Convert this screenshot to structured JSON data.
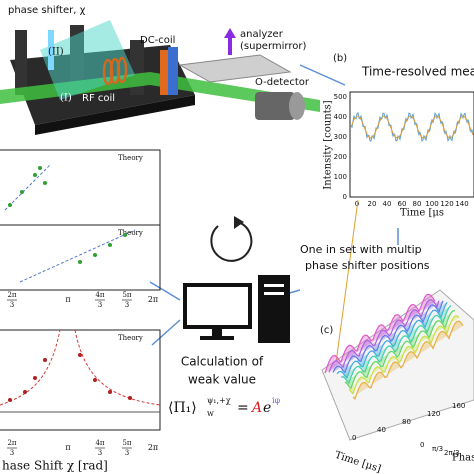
{
  "apparatus": {
    "phase_shifter": "phase shifter, χ",
    "path_2": "(II)",
    "path_1": "(I)",
    "rf_coil": "RF coil",
    "dc_coil": "DC-coil",
    "analyzer": "analyzer",
    "supermirror": "(supermirror)",
    "detector": "O-detector"
  },
  "panel_b": {
    "label": "(b)",
    "title": "Time-resolved measu",
    "y_label": "Intensity [counts]",
    "y_ticks": [
      "0",
      "100",
      "200",
      "300",
      "400",
      "500"
    ],
    "x_ticks": [
      "0",
      "20",
      "40",
      "60",
      "80",
      "100",
      "120",
      "140"
    ],
    "x_label": "Time [μs"
  },
  "note": {
    "line1": "One in set with multip",
    "line2": "phase shifter positions"
  },
  "panel_c": {
    "label": "(c)",
    "time_label": "Time [μs]",
    "time_ticks": [
      "0",
      "40",
      "80",
      "120",
      "160"
    ],
    "phase_label": "Phas",
    "phase_ticks": [
      "0",
      "π/3",
      "2π/3"
    ]
  },
  "left": {
    "legend_1": "Theory",
    "legend_2": "Theory",
    "legend_3": "Theory",
    "x_ticks": [
      {
        "num": "2π",
        "den": "3"
      },
      {
        "num": "π",
        "den": ""
      },
      {
        "num": "4π",
        "den": "3"
      },
      {
        "num": "5π",
        "den": "3"
      },
      {
        "num": "2π",
        "den": ""
      }
    ],
    "x_label": "hase Shift χ [rad]"
  },
  "calculation": {
    "line1": "Calculation of",
    "line2": "weak value",
    "formula": {
      "bracket": "⟨Π₁⟩",
      "sup": "ψ₁,+χ",
      "sub": "w",
      "eq": "=",
      "amp": "A",
      "exp": "e",
      "phase": "iφ"
    }
  }
}
